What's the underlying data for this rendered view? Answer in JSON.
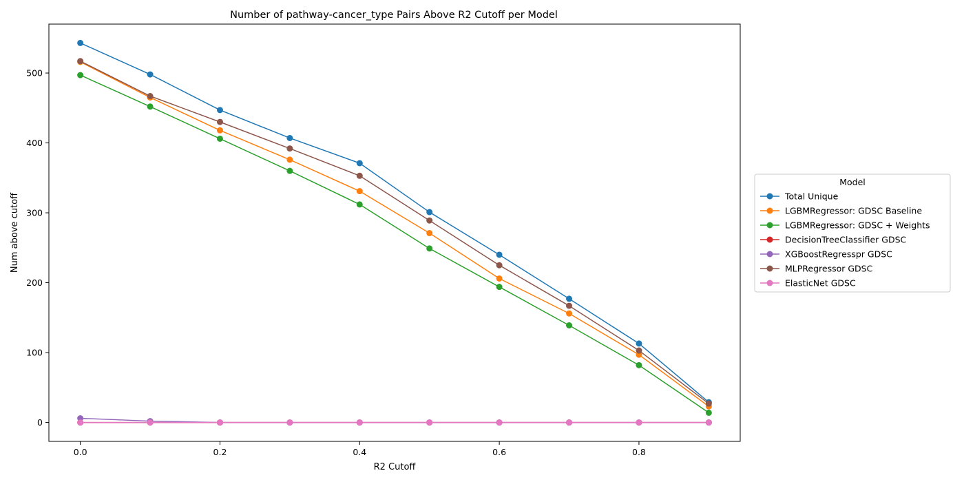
{
  "chart_data": {
    "type": "line",
    "title": "Number of pathway-cancer_type Pairs Above R2 Cutoff per Model",
    "xlabel": "R2 Cutoff",
    "ylabel": "Num above cutoff",
    "x": [
      0.0,
      0.1,
      0.2,
      0.3,
      0.4,
      0.5,
      0.6,
      0.7,
      0.8,
      0.9
    ],
    "xlim": [
      -0.045,
      0.945
    ],
    "ylim": [
      -27,
      570
    ],
    "xticks": [
      "0.0",
      "0.2",
      "0.4",
      "0.6",
      "0.8"
    ],
    "xtick_values": [
      0.0,
      0.2,
      0.4,
      0.6,
      0.8
    ],
    "yticks": [
      "0",
      "100",
      "200",
      "300",
      "400",
      "500"
    ],
    "ytick_values": [
      0,
      100,
      200,
      300,
      400,
      500
    ],
    "grid": false,
    "legend_title": "Model",
    "legend_position": "right-outside",
    "series": [
      {
        "name": "Total Unique",
        "color": "#1f77b4",
        "values": [
          543,
          498,
          447,
          407,
          371,
          301,
          240,
          177,
          113,
          29
        ]
      },
      {
        "name": "LGBMRegressor: GDSC Baseline",
        "color": "#ff7f0e",
        "values": [
          516,
          465,
          418,
          376,
          331,
          271,
          206,
          156,
          97,
          23
        ]
      },
      {
        "name": "LGBMRegressor: GDSC + Weights",
        "color": "#2ca02c",
        "values": [
          497,
          452,
          406,
          360,
          312,
          249,
          194,
          139,
          82,
          14
        ]
      },
      {
        "name": "DecisionTreeClassifier GDSC",
        "color": "#d62728",
        "values": [
          0,
          0,
          0,
          0,
          0,
          0,
          0,
          0,
          0,
          0
        ]
      },
      {
        "name": "XGBoostRegresspr GDSC",
        "color": "#9467bd",
        "values": [
          6,
          2,
          0,
          0,
          0,
          0,
          0,
          0,
          0,
          0
        ]
      },
      {
        "name": "MLPRegressor GDSC",
        "color": "#8c564b",
        "values": [
          517,
          467,
          430,
          392,
          353,
          289,
          225,
          167,
          103,
          27
        ]
      },
      {
        "name": "ElasticNet GDSC",
        "color": "#e377c2",
        "values": [
          0,
          0,
          0,
          0,
          0,
          0,
          0,
          0,
          0,
          0
        ]
      }
    ]
  }
}
